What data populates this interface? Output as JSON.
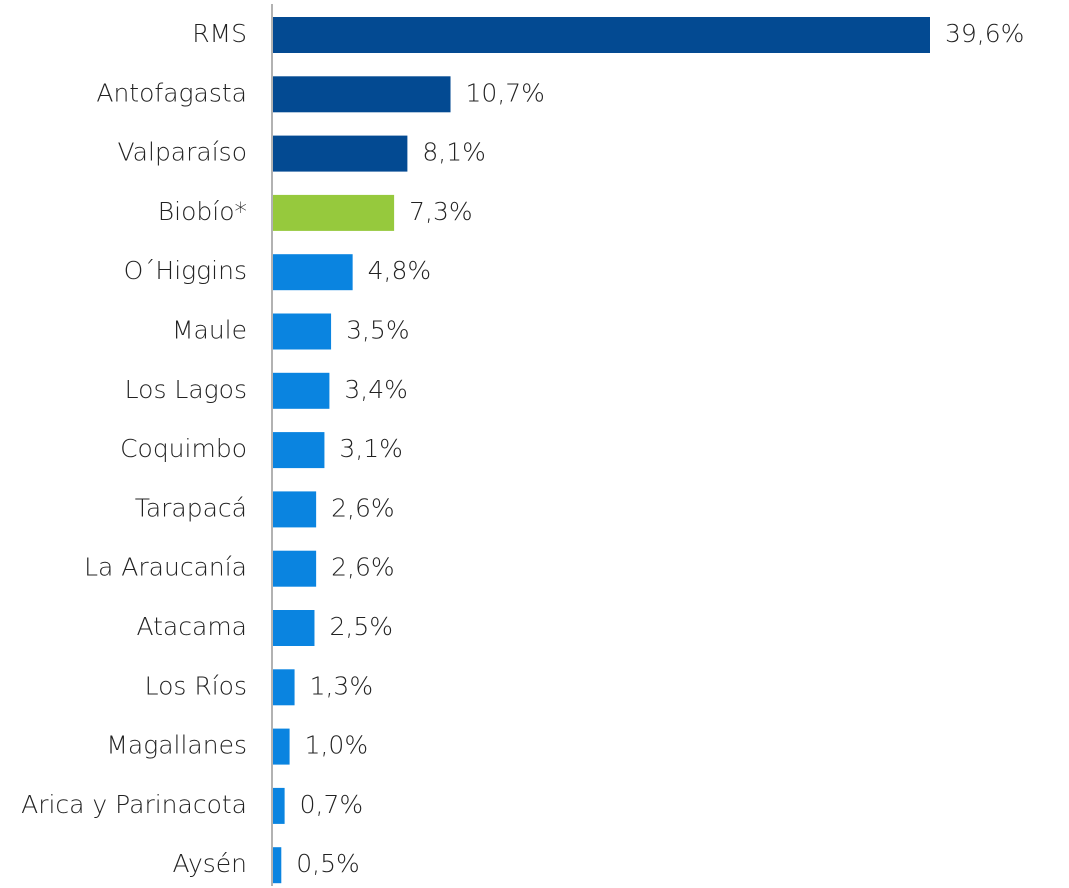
{
  "chart_data": {
    "type": "bar",
    "orientation": "horizontal",
    "categories": [
      "RMS",
      "Antofagasta",
      "Valparaíso",
      "Biobío*",
      "O´Higgins",
      "Maule",
      "Los Lagos",
      "Coquimbo",
      "Tarapacá",
      "La Araucanía",
      "Atacama",
      "Los Ríos",
      "Magallanes",
      "Arica y Parinacota",
      "Aysén"
    ],
    "values": [
      39.6,
      10.7,
      8.1,
      7.3,
      4.8,
      3.5,
      3.4,
      3.1,
      2.6,
      2.6,
      2.5,
      1.3,
      1.0,
      0.7,
      0.5
    ],
    "value_labels": [
      "39,6%",
      "10,7%",
      "8,1%",
      "7,3%",
      "4,8%",
      "3,5%",
      "3,4%",
      "3,1%",
      "2,6%",
      "2,6%",
      "2,5%",
      "1,3%",
      "1,0%",
      "0,7%",
      "0,5%"
    ],
    "colors": [
      "#034a92",
      "#034a92",
      "#034a92",
      "#96c93d",
      "#0a84e0",
      "#0a84e0",
      "#0a84e0",
      "#0a84e0",
      "#0a84e0",
      "#0a84e0",
      "#0a84e0",
      "#0a84e0",
      "#0a84e0",
      "#0a84e0",
      "#0a84e0"
    ]
  }
}
